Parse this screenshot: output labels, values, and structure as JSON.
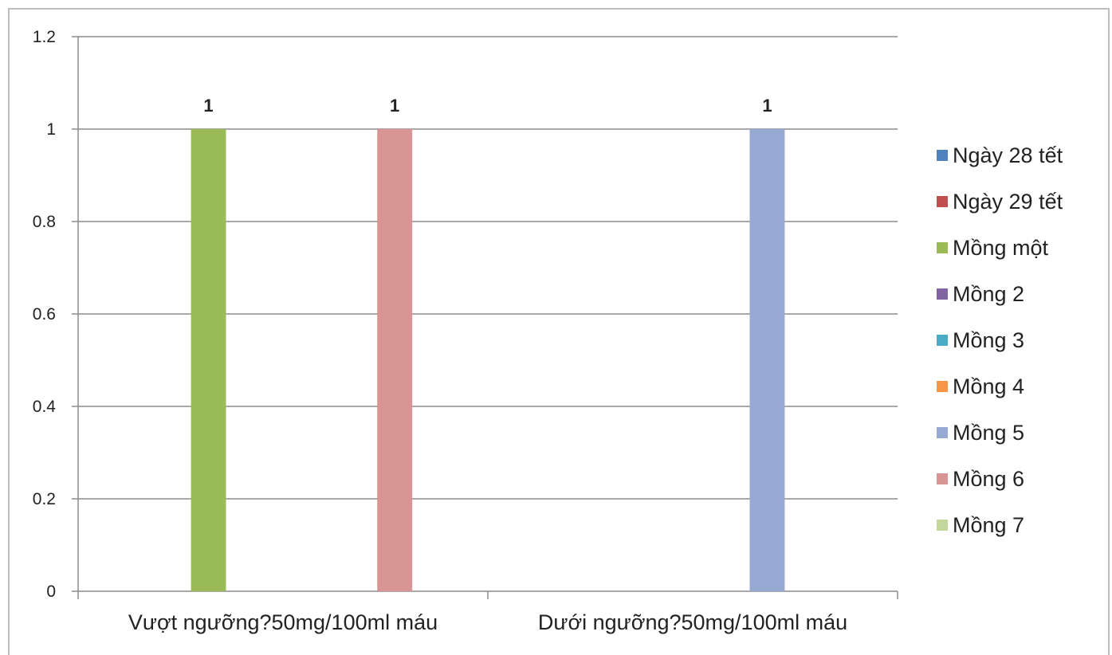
{
  "chart_data": {
    "type": "bar",
    "categories": [
      "Vượt ngưỡng?50mg/100ml máu",
      "Dưới ngưỡng?50mg/100ml máu"
    ],
    "series": [
      {
        "name": "Ngày 28 tết",
        "color": "#4F81BD",
        "values": [
          0,
          0
        ]
      },
      {
        "name": "Ngày 29 tết",
        "color": "#C0504D",
        "values": [
          0,
          0
        ]
      },
      {
        "name": "Mồng một",
        "color": "#9BBB59",
        "values": [
          1,
          0
        ]
      },
      {
        "name": "Mồng 2",
        "color": "#8064A2",
        "values": [
          0,
          0
        ]
      },
      {
        "name": "Mồng 3",
        "color": "#4BACC6",
        "values": [
          0,
          0
        ]
      },
      {
        "name": "Mồng 4",
        "color": "#F79646",
        "values": [
          0,
          0
        ]
      },
      {
        "name": "Mồng 5",
        "color": "#95A9D2",
        "values": [
          0,
          1
        ]
      },
      {
        "name": "Mồng 6",
        "color": "#D99594",
        "values": [
          1,
          0
        ]
      },
      {
        "name": "Mồng 7",
        "color": "#C3D69B",
        "values": [
          0,
          0
        ]
      }
    ],
    "data_labels": [
      "1",
      "1",
      "1"
    ],
    "yticks": [
      "0",
      "0.2",
      "0.4",
      "0.6",
      "0.8",
      "1",
      "1.2"
    ],
    "ylim": [
      0,
      1.2
    ],
    "grid": true,
    "legend_position": "right"
  }
}
